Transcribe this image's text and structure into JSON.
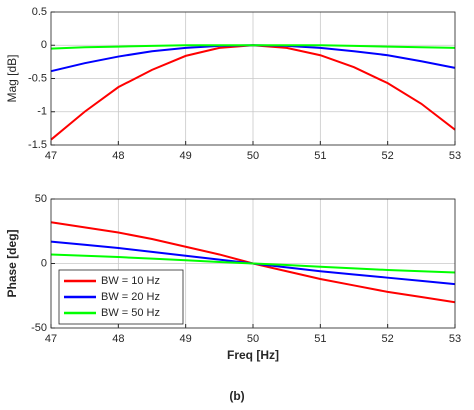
{
  "chart_data": [
    {
      "type": "line",
      "ylabel": "Mag [dB]",
      "x": [
        47,
        47.5,
        48,
        48.5,
        49,
        49.5,
        50,
        50.5,
        51,
        51.5,
        52,
        52.5,
        53
      ],
      "series": [
        {
          "color": "#ff0000",
          "values": [
            -1.42,
            -1.0,
            -0.63,
            -0.37,
            -0.16,
            -0.04,
            0,
            -0.04,
            -0.15,
            -0.33,
            -0.57,
            -0.88,
            -1.27
          ]
        },
        {
          "color": "#0000ff",
          "values": [
            -0.39,
            -0.27,
            -0.17,
            -0.09,
            -0.04,
            -0.01,
            0,
            -0.01,
            -0.04,
            -0.09,
            -0.15,
            -0.24,
            -0.34
          ]
        },
        {
          "color": "#00ff00",
          "values": [
            -0.05,
            -0.03,
            -0.02,
            -0.01,
            0,
            0,
            0,
            0,
            0,
            -0.01,
            -0.02,
            -0.03,
            -0.04
          ]
        }
      ],
      "xlim": [
        47,
        53
      ],
      "xticks": [
        47,
        48,
        49,
        50,
        51,
        52,
        53
      ],
      "ylim": [
        -1.5,
        0.5
      ],
      "yticks": [
        -1.5,
        -1,
        -0.5,
        0,
        0.5
      ],
      "grid": true
    },
    {
      "type": "line",
      "ylabel": "Phase [deg]",
      "xlabel": "Freq [Hz]",
      "x": [
        47,
        47.5,
        48,
        48.5,
        49,
        49.5,
        50,
        50.5,
        51,
        51.5,
        52,
        52.5,
        53
      ],
      "series": [
        {
          "name": "BW = 10 Hz",
          "color": "#ff0000",
          "values": [
            32,
            28,
            24,
            19,
            13,
            7,
            0,
            -6,
            -12,
            -17,
            -22,
            -26,
            -30
          ]
        },
        {
          "name": "BW = 20 Hz",
          "color": "#0000ff",
          "values": [
            17,
            14.5,
            12,
            9,
            6,
            3,
            0,
            -3,
            -6,
            -8.5,
            -11,
            -13.5,
            -16
          ]
        },
        {
          "name": "BW = 50 Hz",
          "color": "#00ff00",
          "values": [
            7,
            6,
            5,
            3.8,
            2.5,
            1.2,
            0,
            -1.2,
            -2.5,
            -3.8,
            -5,
            -6,
            -7
          ]
        }
      ],
      "xlim": [
        47,
        53
      ],
      "xticks": [
        47,
        48,
        49,
        50,
        51,
        52,
        53
      ],
      "ylim": [
        -50,
        50
      ],
      "yticks": [
        -50,
        0,
        50
      ],
      "grid": true,
      "legend": "lower left"
    }
  ],
  "caption": "(b)"
}
